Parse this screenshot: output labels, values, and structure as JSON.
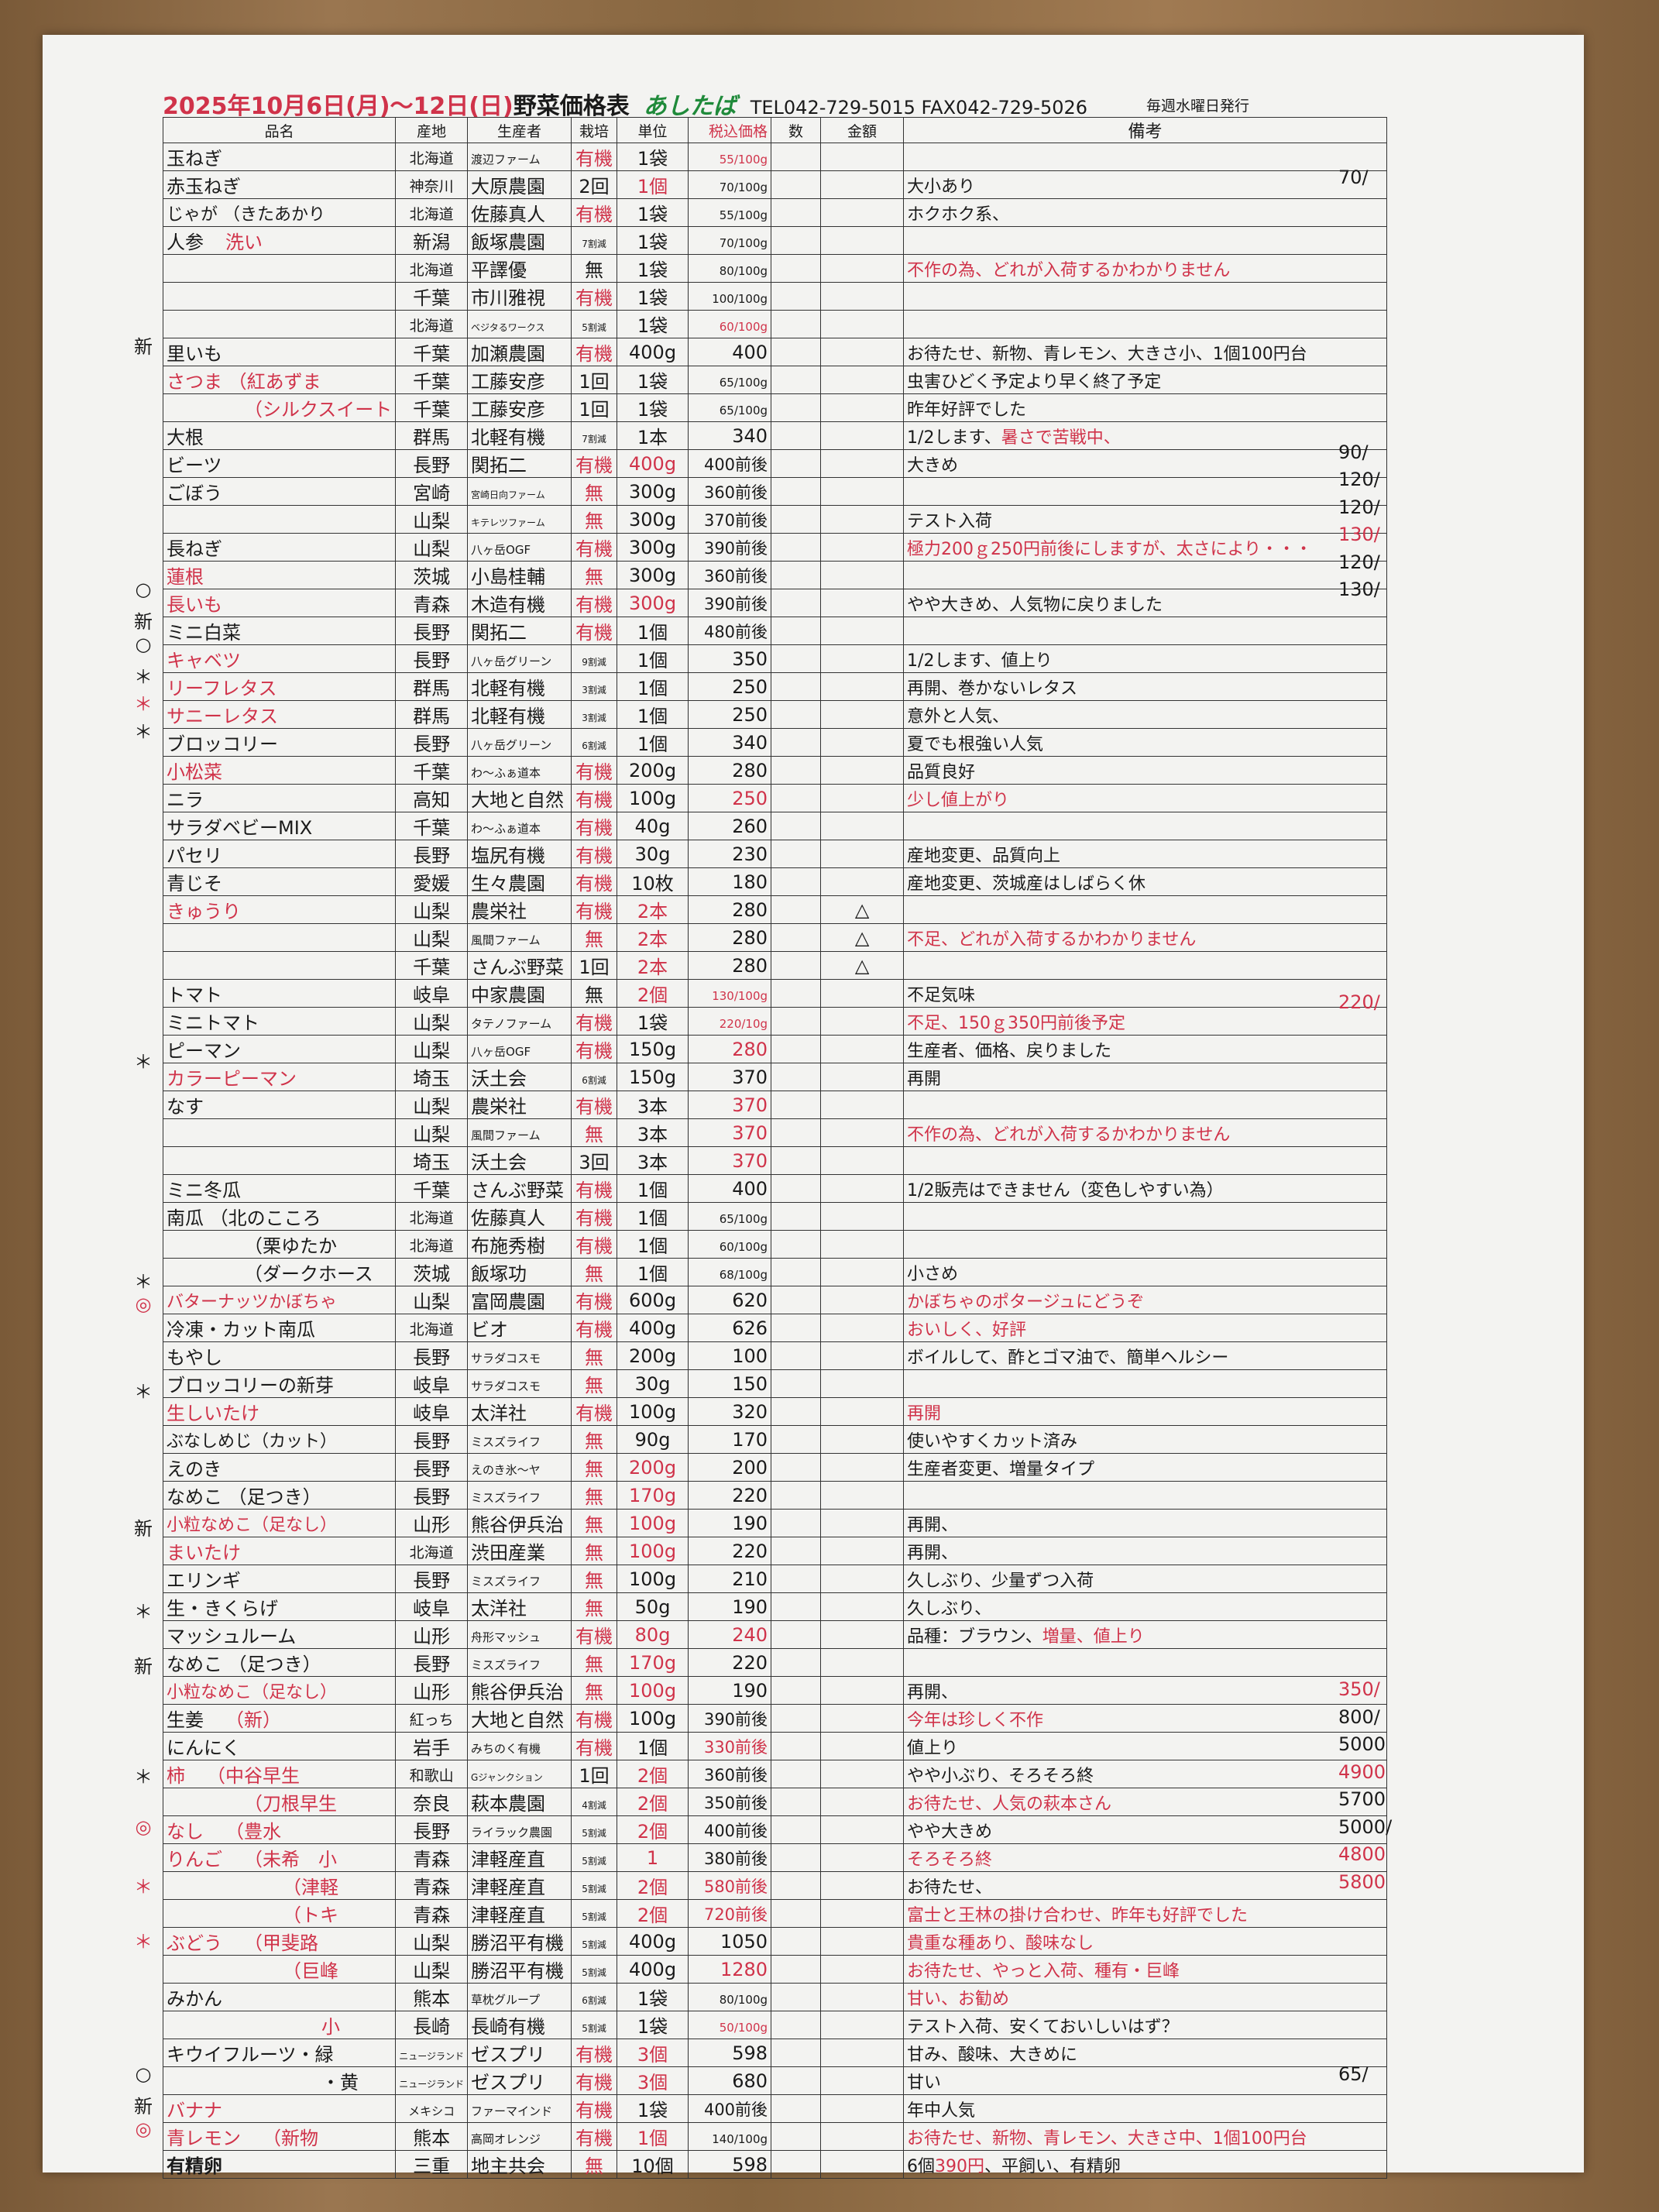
{
  "header": {
    "date": "2025年10月6日(月)～12日(日)",
    "title": "野菜価格表",
    "brand": "あしたば",
    "contact": "TEL042-729-5015  FAX042-729-5026",
    "issue": "毎週水曜日発行"
  },
  "columns": [
    "品名",
    "産地",
    "生産者",
    "栽培",
    "単位",
    "税込価格",
    "数",
    "金額",
    "備考"
  ],
  "colors": {
    "red": "#d0334a",
    "green": "#1f8a3a"
  },
  "rows": [
    {
      "name": "玉ねぎ",
      "org": "北海道",
      "prod": "渡辺ファーム",
      "cult": "有機",
      "unit": "1袋",
      "price": "55/100g",
      "red": [
        "cult",
        "price"
      ]
    },
    {
      "name": "赤玉ねぎ",
      "org": "神奈川",
      "prod": "大原農園",
      "cult": "2回",
      "unit": "1個",
      "price": "70/100g",
      "notes": "大小あり",
      "side": "70/",
      "red": [
        "unit"
      ]
    },
    {
      "name": "じゃが （きたあかり",
      "org": "北海道",
      "prod": "佐藤真人",
      "cult": "有機",
      "unit": "1袋",
      "price": "55/100g",
      "notes": "ホクホク系、",
      "red": [
        "cult"
      ]
    },
    {
      "name": "人参",
      "sub": "洗い",
      "org": "新潟",
      "prod": "飯塚農園",
      "cult": "7割減",
      "unit": "1袋",
      "price": "70/100g",
      "red": [
        "sub"
      ]
    },
    {
      "org": "北海道",
      "prod": "平譯優",
      "cult": "無",
      "unit": "1袋",
      "price": "80/100g",
      "notes": "不作の為、どれが入荷するかわかりません",
      "red": [
        "notes"
      ]
    },
    {
      "org": "千葉",
      "prod": "市川雅視",
      "cult": "有機",
      "unit": "1袋",
      "price": "100/100g",
      "red": [
        "cult"
      ]
    },
    {
      "org": "北海道",
      "prod": "ベジタるワークス",
      "cult": "5割減",
      "unit": "1袋",
      "price": "60/100g",
      "red": [
        "price"
      ]
    },
    {
      "mark": "新",
      "name": "里いも",
      "org": "千葉",
      "prod": "加瀬農園",
      "cult": "有機",
      "unit": "400g",
      "price": "400",
      "notes": "お待たせ、新物、青レモン、大きさ小、1個100円台",
      "red": [
        "cult"
      ]
    },
    {
      "name": "さつま （紅あずま",
      "org": "千葉",
      "prod": "工藤安彦",
      "cult": "1回",
      "unit": "1袋",
      "price": "65/100g",
      "notes": "虫害ひどく予定より早く終了予定",
      "red": [
        "name"
      ]
    },
    {
      "sub": "（シルクスイート",
      "org": "千葉",
      "prod": "工藤安彦",
      "cult": "1回",
      "unit": "1袋",
      "price": "65/100g",
      "notes": "昨年好評でした",
      "red": [
        "sub"
      ]
    },
    {
      "name": "大根",
      "org": "群馬",
      "prod": "北軽有機",
      "cult": "7割減",
      "unit": "1本",
      "price": "340",
      "notes": "1/2します、",
      "notes_red": "暑さで苦戦中、",
      "red": []
    },
    {
      "name": "ビーツ",
      "org": "長野",
      "prod": "関拓二",
      "cult": "有機",
      "unit": "400g",
      "price": "400前後",
      "notes": "大きめ",
      "side": "90/",
      "red": [
        "cult",
        "unit"
      ]
    },
    {
      "name": "ごぼう",
      "org": "宮崎",
      "prod": "宮崎日向ファーム",
      "cult": "無",
      "unit": "300g",
      "price": "360前後",
      "side": "120/",
      "red": [
        "cult"
      ]
    },
    {
      "org": "山梨",
      "prod": "キテレツファーム",
      "cult": "無",
      "unit": "300g",
      "price": "370前後",
      "notes": "テスト入荷",
      "side": "120/",
      "red": [
        "cult"
      ]
    },
    {
      "name": "長ねぎ",
      "org": "山梨",
      "prod": "八ヶ岳OGF",
      "cult": "有機",
      "unit": "300g",
      "price": "390前後",
      "notes": "極力200ｇ250円前後にしますが、太さにより・・・",
      "side": "130/",
      "red": [
        "cult",
        "notes",
        "side"
      ]
    },
    {
      "name": "蓮根",
      "org": "茨城",
      "prod": "小島桂輔",
      "cult": "無",
      "unit": "300g",
      "price": "360前後",
      "side": "120/",
      "red": [
        "name",
        "cult"
      ]
    },
    {
      "mark": "○",
      "name": "長いも",
      "org": "青森",
      "prod": "木造有機",
      "cult": "有機",
      "unit": "300g",
      "price": "390前後",
      "notes": "やや大きめ、人気物に戻りました",
      "side": "130/",
      "red": [
        "name",
        "cult",
        "unit"
      ]
    },
    {
      "mark": "新",
      "name": "ミニ白菜",
      "org": "長野",
      "prod": "関拓二",
      "cult": "有機",
      "unit": "1個",
      "price": "480前後",
      "red": [
        "cult"
      ]
    },
    {
      "mark": "○",
      "name": "キャベツ",
      "org": "長野",
      "prod": "八ヶ岳グリーン",
      "cult": "9割減",
      "unit": "1個",
      "price": "350",
      "notes": "1/2します、値上り",
      "red": [
        "name"
      ]
    },
    {
      "mark": "＊",
      "name": "リーフレタス",
      "org": "群馬",
      "prod": "北軽有機",
      "cult": "3割減",
      "unit": "1個",
      "price": "250",
      "notes": "再開、巻かないレタス",
      "red": [
        "name"
      ]
    },
    {
      "mark": "＊",
      "name": "サニーレタス",
      "org": "群馬",
      "prod": "北軽有機",
      "cult": "3割減",
      "unit": "1個",
      "price": "250",
      "notes": "意外と人気、",
      "red": [
        "mark",
        "name"
      ]
    },
    {
      "mark": "＊",
      "name": "ブロッコリー",
      "org": "長野",
      "prod": "八ヶ岳グリーン",
      "cult": "6割減",
      "unit": "1個",
      "price": "340",
      "notes": "夏でも根強い人気",
      "red": []
    },
    {
      "name": "小松菜",
      "org": "千葉",
      "prod": "わ～ふぁ道本",
      "cult": "有機",
      "unit": "200g",
      "price": "280",
      "notes": "品質良好",
      "red": [
        "name",
        "cult"
      ]
    },
    {
      "name": "ニラ",
      "org": "高知",
      "prod": "大地と自然",
      "cult": "有機",
      "unit": "100g",
      "price": "250",
      "notes": "少し値上がり",
      "red": [
        "cult",
        "price",
        "notes"
      ]
    },
    {
      "name": "サラダベビーMIX",
      "org": "千葉",
      "prod": "わ～ふぁ道本",
      "cult": "有機",
      "unit": "40g",
      "price": "260",
      "red": [
        "cult"
      ]
    },
    {
      "name": "パセリ",
      "org": "長野",
      "prod": "塩尻有機",
      "cult": "有機",
      "unit": "30g",
      "price": "230",
      "notes": "産地変更、品質向上",
      "red": [
        "cult"
      ]
    },
    {
      "name": "青じそ",
      "org": "愛媛",
      "prod": "生々農園",
      "cult": "有機",
      "unit": "10枚",
      "price": "180",
      "notes": "産地変更、茨城産はしばらく休",
      "red": [
        "cult"
      ]
    },
    {
      "name": "きゅうり",
      "org": "山梨",
      "prod": "農栄社",
      "cult": "有機",
      "unit": "2本",
      "price": "280",
      "amt": "△",
      "red": [
        "name",
        "cult",
        "unit"
      ]
    },
    {
      "org": "山梨",
      "prod": "風間ファーム",
      "cult": "無",
      "unit": "2本",
      "price": "280",
      "amt": "△",
      "notes": "不足、どれが入荷するかわかりません",
      "red": [
        "cult",
        "unit",
        "notes"
      ]
    },
    {
      "org": "千葉",
      "prod": "さんぶ野菜",
      "cult": "1回",
      "unit": "2本",
      "price": "280",
      "amt": "△",
      "red": [
        "unit"
      ]
    },
    {
      "name": "トマト",
      "org": "岐阜",
      "prod": "中家農園",
      "cult": "無",
      "unit": "2個",
      "price": "130/100g",
      "notes": "不足気味",
      "red": [
        "unit",
        "price"
      ]
    },
    {
      "name": "ミニトマト",
      "org": "山梨",
      "prod": "タテノファーム",
      "cult": "有機",
      "unit": "1袋",
      "price": "220/10g",
      "notes": "不足、150ｇ350円前後予定",
      "side": "220/",
      "red": [
        "cult",
        "price",
        "notes",
        "side"
      ]
    },
    {
      "name": "ピーマン",
      "org": "山梨",
      "prod": "八ヶ岳OGF",
      "cult": "有機",
      "unit": "150g",
      "price": "280",
      "notes": "生産者、価格、戻りました",
      "red": [
        "cult",
        "price"
      ]
    },
    {
      "mark": "＊",
      "name": "カラーピーマン",
      "org": "埼玉",
      "prod": "沃土会",
      "cult": "6割減",
      "unit": "150g",
      "price": "370",
      "notes": "再開",
      "red": [
        "name"
      ]
    },
    {
      "name": "なす",
      "org": "山梨",
      "prod": "農栄社",
      "cult": "有機",
      "unit": "3本",
      "price": "370",
      "red": [
        "cult",
        "price"
      ]
    },
    {
      "org": "山梨",
      "prod": "風間ファーム",
      "cult": "無",
      "unit": "3本",
      "price": "370",
      "notes": "不作の為、どれが入荷するかわかりません",
      "red": [
        "cult",
        "price",
        "notes"
      ]
    },
    {
      "org": "埼玉",
      "prod": "沃土会",
      "cult": "3回",
      "unit": "3本",
      "price": "370",
      "red": [
        "price"
      ]
    },
    {
      "name": "ミニ冬瓜",
      "org": "千葉",
      "prod": "さんぶ野菜",
      "cult": "有機",
      "unit": "1個",
      "price": "400",
      "notes": "1/2販売はできません（変色しやすい為）",
      "red": [
        "cult"
      ]
    },
    {
      "name": "南瓜 （北のこころ",
      "org": "北海道",
      "prod": "佐藤真人",
      "cult": "有機",
      "unit": "1個",
      "price": "65/100g",
      "red": [
        "cult"
      ]
    },
    {
      "sub": "（栗ゆたか",
      "org": "北海道",
      "prod": "布施秀樹",
      "cult": "有機",
      "unit": "1個",
      "price": "60/100g",
      "red": [
        "cult"
      ]
    },
    {
      "sub": "（ダークホース",
      "org": "茨城",
      "prod": "飯塚功",
      "cult": "無",
      "unit": "1個",
      "price": "68/100g",
      "notes": "小さめ",
      "red": [
        "cult"
      ]
    },
    {
      "mark": "＊",
      "name": "バターナッツかぼちゃ",
      "org": "山梨",
      "prod": "富岡農園",
      "cult": "有機",
      "unit": "600g",
      "price": "620",
      "notes": "かぼちゃのポタージュにどうぞ",
      "red": [
        "name",
        "cult",
        "notes"
      ]
    },
    {
      "mark": "◎",
      "name": "冷凍・カット南瓜",
      "org": "北海道",
      "prod": "ビオ",
      "cult": "有機",
      "unit": "400g",
      "price": "626",
      "notes": "おいしく、好評",
      "red": [
        "mark",
        "cult",
        "notes"
      ]
    },
    {
      "name": "もやし",
      "org": "長野",
      "prod": "サラダコスモ",
      "cult": "無",
      "unit": "200g",
      "price": "100",
      "notes": "ボイルして、酢とゴマ油で、簡単ヘルシー",
      "red": [
        "cult"
      ]
    },
    {
      "name": "ブロッコリーの新芽",
      "org": "岐阜",
      "prod": "サラダコスモ",
      "cult": "無",
      "unit": "30g",
      "price": "150",
      "red": [
        "cult"
      ]
    },
    {
      "mark": "＊",
      "name": "生しいたけ",
      "org": "岐阜",
      "prod": "太洋社",
      "cult": "有機",
      "unit": "100g",
      "price": "320",
      "notes": "再開",
      "red": [
        "name",
        "cult",
        "notes"
      ]
    },
    {
      "name": "ぶなしめじ（カット）",
      "org": "長野",
      "prod": "ミスズライフ",
      "cult": "無",
      "unit": "90g",
      "price": "170",
      "notes": "使いやすくカット済み",
      "red": [
        "cult"
      ]
    },
    {
      "name": "えのき",
      "org": "長野",
      "prod": "えのき氷～ヤ",
      "cult": "無",
      "unit": "200g",
      "price": "200",
      "notes": "生産者変更、増量タイプ",
      "red": [
        "cult",
        "unit"
      ]
    },
    {
      "name": "なめこ （足つき）",
      "org": "長野",
      "prod": "ミスズライフ",
      "cult": "無",
      "unit": "170g",
      "price": "220",
      "red": [
        "cult",
        "unit"
      ]
    },
    {
      "name": "小粒なめこ（足なし）",
      "org": "山形",
      "prod": "熊谷伊兵治",
      "cult": "無",
      "unit": "100g",
      "price": "190",
      "notes": "再開、",
      "red": [
        "name",
        "cult",
        "unit"
      ]
    },
    {
      "mark": "新",
      "name": "まいたけ",
      "org": "北海道",
      "prod": "渋田産業",
      "cult": "無",
      "unit": "100g",
      "price": "220",
      "notes": "再開、",
      "red": [
        "name",
        "cult",
        "unit"
      ]
    },
    {
      "name": "エリンギ",
      "org": "長野",
      "prod": "ミスズライフ",
      "cult": "無",
      "unit": "100g",
      "price": "210",
      "notes": "久しぶり、少量ずつ入荷",
      "red": [
        "cult"
      ]
    },
    {
      "name": "生・きくらげ",
      "org": "岐阜",
      "prod": "太洋社",
      "cult": "無",
      "unit": "50g",
      "price": "190",
      "notes": "久しぶり、",
      "red": [
        "cult"
      ]
    },
    {
      "mark": "＊",
      "name": "マッシュルーム",
      "org": "山形",
      "prod": "舟形マッシュ",
      "cult": "有機",
      "unit": "80g",
      "price": "240",
      "notes": "品種：ブラウン、",
      "notes_red": "増量、値上り",
      "red": [
        "cult",
        "unit",
        "price"
      ]
    },
    {
      "name": "なめこ （足つき）",
      "org": "長野",
      "prod": "ミスズライフ",
      "cult": "無",
      "unit": "170g",
      "price": "220",
      "red": [
        "cult",
        "unit"
      ]
    },
    {
      "mark": "新",
      "name": "小粒なめこ（足なし）",
      "org": "山形",
      "prod": "熊谷伊兵治",
      "cult": "無",
      "unit": "100g",
      "price": "190",
      "notes": "再開、",
      "red": [
        "name",
        "cult",
        "unit"
      ]
    },
    {
      "name": "生姜",
      "sub": "（新）",
      "org": "紅っち",
      "prod": "大地と自然",
      "cult": "有機",
      "unit": "100g",
      "price": "390前後",
      "notes": "今年は珍しく不作",
      "side": "350/",
      "red": [
        "sub",
        "cult",
        "notes",
        "side"
      ]
    },
    {
      "name": "にんにく",
      "org": "岩手",
      "prod": "みちのく有機",
      "cult": "有機",
      "unit": "1個",
      "price": "330前後",
      "notes": "値上り",
      "side": "800/",
      "red": [
        "cult",
        "price"
      ]
    },
    {
      "name": "柿",
      "sub": "（中谷早生",
      "org": "和歌山",
      "prod": "Gジャンクション",
      "cult": "1回",
      "unit": "2個",
      "price": "360前後",
      "notes": "やや小ぶり、そろそろ終",
      "side": "5000",
      "red": [
        "name",
        "sub",
        "unit"
      ]
    },
    {
      "mark": "＊",
      "sub": "（刀根早生",
      "org": "奈良",
      "prod": "萩本農園",
      "cult": "4割減",
      "unit": "2個",
      "price": "350前後",
      "notes": "お待たせ、人気の萩本さん",
      "side": "4900",
      "red": [
        "sub",
        "unit",
        "notes",
        "side"
      ]
    },
    {
      "name": "なし",
      "sub": "（豊水",
      "org": "長野",
      "prod": "ライラック農園",
      "cult": "5割減",
      "unit": "2個",
      "price": "400前後",
      "notes": "やや大きめ",
      "side": "5700",
      "red": [
        "name",
        "sub",
        "unit"
      ]
    },
    {
      "mark": "◎",
      "name": "りんご",
      "sub": "（未希　小",
      "org": "青森",
      "prod": "津軽産直",
      "cult": "5割減",
      "unit": "1",
      "price": "380前後",
      "notes": "そろそろ終",
      "side": "5000/",
      "red": [
        "mark",
        "name",
        "sub",
        "unit",
        "notes"
      ]
    },
    {
      "sub": "（津軽",
      "org": "青森",
      "prod": "津軽産直",
      "cult": "5割減",
      "unit": "2個",
      "price": "580前後",
      "notes": "お待たせ、",
      "side": "4800",
      "red": [
        "sub",
        "unit",
        "price",
        "side"
      ]
    },
    {
      "mark": "＊",
      "sub": "（トキ",
      "org": "青森",
      "prod": "津軽産直",
      "cult": "5割減",
      "unit": "2個",
      "price": "720前後",
      "notes": "富士と王林の掛け合わせ、昨年も好評でした",
      "side": "5800",
      "red": [
        "mark",
        "sub",
        "unit",
        "price",
        "notes",
        "side"
      ]
    },
    {
      "name": "ぶどう",
      "sub": "（甲斐路",
      "org": "山梨",
      "prod": "勝沼平有機",
      "cult": "5割減",
      "unit": "400g",
      "price": "1050",
      "notes": "貴重な種あり、酸味なし",
      "red": [
        "name",
        "sub",
        "notes"
      ]
    },
    {
      "mark": "＊",
      "sub": "（巨峰",
      "org": "山梨",
      "prod": "勝沼平有機",
      "cult": "5割減",
      "unit": "400g",
      "price": "1280",
      "notes": "お待たせ、やっと入荷、種有・巨峰",
      "red": [
        "mark",
        "sub",
        "price",
        "notes"
      ]
    },
    {
      "name": "みかん",
      "org": "熊本",
      "prod": "草枕グループ",
      "cult": "6割減",
      "unit": "1袋",
      "price": "80/100g",
      "notes": "甘い、お勧め",
      "red": [
        "notes"
      ]
    },
    {
      "sub": "小",
      "org": "長崎",
      "prod": "長崎有機",
      "cult": "5割減",
      "unit": "1袋",
      "price": "50/100g",
      "notes": "テスト入荷、安くておいしいはず？",
      "red": [
        "sub",
        "price"
      ]
    },
    {
      "name": "キウイフルーツ・緑",
      "org": "ニュージランド",
      "prod": "ゼスプリ",
      "cult": "有機",
      "unit": "3個",
      "price": "598",
      "notes": "甘み、酸味、大きめに",
      "red": [
        "cult",
        "unit"
      ]
    },
    {
      "sub": "・黄",
      "org": "ニュージランド",
      "prod": "ゼスプリ",
      "cult": "有機",
      "unit": "3個",
      "price": "680",
      "notes": "甘い",
      "red": [
        "cult",
        "unit"
      ]
    },
    {
      "mark": "○",
      "name": "バナナ",
      "org": "メキシコ",
      "prod": "ファーマインド",
      "cult": "有機",
      "unit": "1袋",
      "price": "400前後",
      "notes": "年中人気",
      "side": "65/",
      "red": [
        "name",
        "cult"
      ]
    },
    {
      "mark": "新",
      "name": "青レモン",
      "sub": "（新物",
      "org": "熊本",
      "prod": "高岡オレンジ",
      "cult": "有機",
      "unit": "1個",
      "price": "140/100g",
      "notes": "お待たせ、新物、青レモン、大きさ中、1個100円台",
      "red": [
        "name",
        "sub",
        "cult",
        "unit",
        "notes"
      ]
    },
    {
      "mark": "◎",
      "name": "有精卵",
      "org": "三重",
      "prod": "地主共会",
      "cult": "無",
      "unit": "10個",
      "price": "598",
      "notes": "6個",
      "notes_red": "390円",
      "notes_tail": "、平飼い、有精卵",
      "red": [
        "mark",
        "cult"
      ]
    }
  ]
}
